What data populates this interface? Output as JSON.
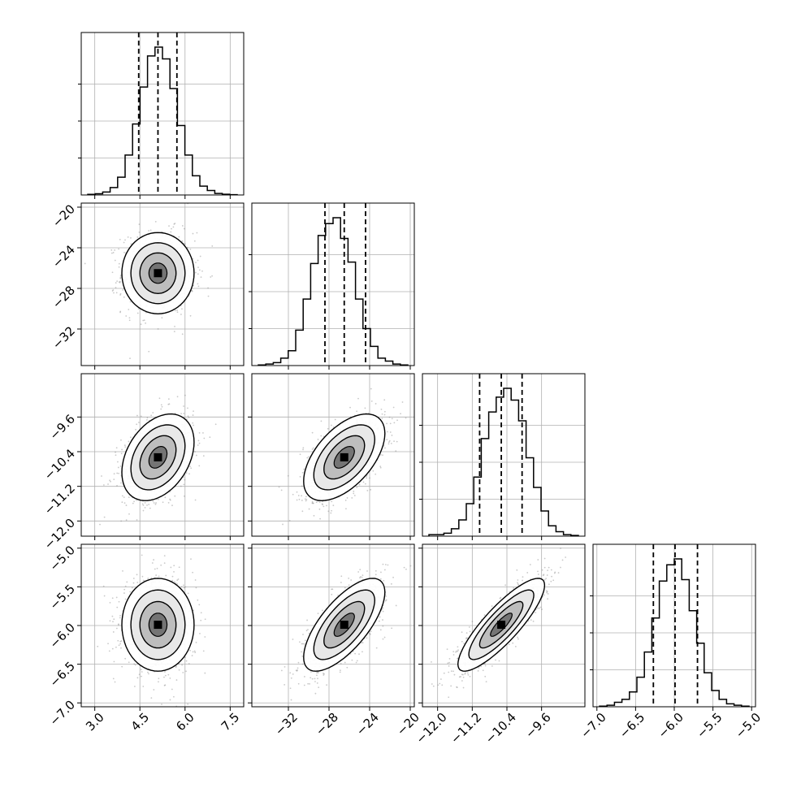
{
  "chart_data": {
    "type": "corner",
    "parameters": [
      {
        "range": [
          2.55,
          7.95
        ],
        "ticks": [
          "3.0",
          "4.5",
          "6.0",
          "7.5"
        ],
        "tick_values": [
          3.0,
          4.5,
          6.0,
          7.5
        ],
        "quantiles": [
          4.46,
          5.1,
          5.73
        ]
      },
      {
        "range": [
          -35.6,
          -19.6
        ],
        "ticks": [
          "−32",
          "−28",
          "−24",
          "−20"
        ],
        "tick_values": [
          -32,
          -28,
          -24,
          -20
        ],
        "quantiles": [
          -28.4,
          -26.5,
          -24.4
        ]
      },
      {
        "range": [
          -12.35,
          -8.6
        ],
        "ticks": [
          "−12.0",
          "−11.2",
          "−10.4",
          "−9.6"
        ],
        "tick_values": [
          -12.0,
          -11.2,
          -10.4,
          -9.6
        ],
        "quantiles": [
          -11.03,
          -10.53,
          -10.05
        ]
      },
      {
        "range": [
          -7.05,
          -4.95
        ],
        "ticks": [
          "−7.0",
          "−6.5",
          "−6.0",
          "−5.5",
          "−5.0"
        ],
        "tick_values": [
          -7.0,
          -6.5,
          -6.0,
          -5.5,
          -5.0
        ],
        "quantiles": [
          -6.27,
          -5.99,
          -5.7
        ]
      }
    ],
    "histograms": [
      [
        0.004,
        0.008,
        0.02,
        0.05,
        0.12,
        0.27,
        0.48,
        0.73,
        0.94,
        1.0,
        0.92,
        0.72,
        0.47,
        0.27,
        0.13,
        0.06,
        0.03,
        0.01,
        0.005,
        0.002
      ],
      [
        0.004,
        0.01,
        0.02,
        0.05,
        0.1,
        0.24,
        0.45,
        0.69,
        0.88,
        0.96,
        1.0,
        0.86,
        0.7,
        0.45,
        0.25,
        0.13,
        0.05,
        0.03,
        0.01,
        0.004
      ],
      [
        0.01,
        0.01,
        0.02,
        0.05,
        0.11,
        0.22,
        0.4,
        0.66,
        0.84,
        0.94,
        1.0,
        0.92,
        0.78,
        0.53,
        0.33,
        0.17,
        0.07,
        0.03,
        0.01,
        0.005
      ],
      [
        0.004,
        0.01,
        0.03,
        0.05,
        0.1,
        0.2,
        0.37,
        0.6,
        0.85,
        0.96,
        1.0,
        0.86,
        0.65,
        0.43,
        0.23,
        0.11,
        0.05,
        0.02,
        0.01,
        0.004
      ]
    ],
    "posterior": {
      "means": [
        5.1,
        -26.5,
        -10.53,
        -5.99
      ],
      "sds": [
        0.6,
        2.0,
        0.5,
        0.3
      ],
      "correlations": [
        [
          1.0,
          0.0,
          0.35,
          0.0
        ],
        [
          0.0,
          1.0,
          0.55,
          0.7
        ],
        [
          0.35,
          0.55,
          1.0,
          0.85
        ],
        [
          0.0,
          0.7,
          0.85,
          1.0
        ]
      ]
    },
    "grid": true,
    "quantile_style": "dashed"
  }
}
